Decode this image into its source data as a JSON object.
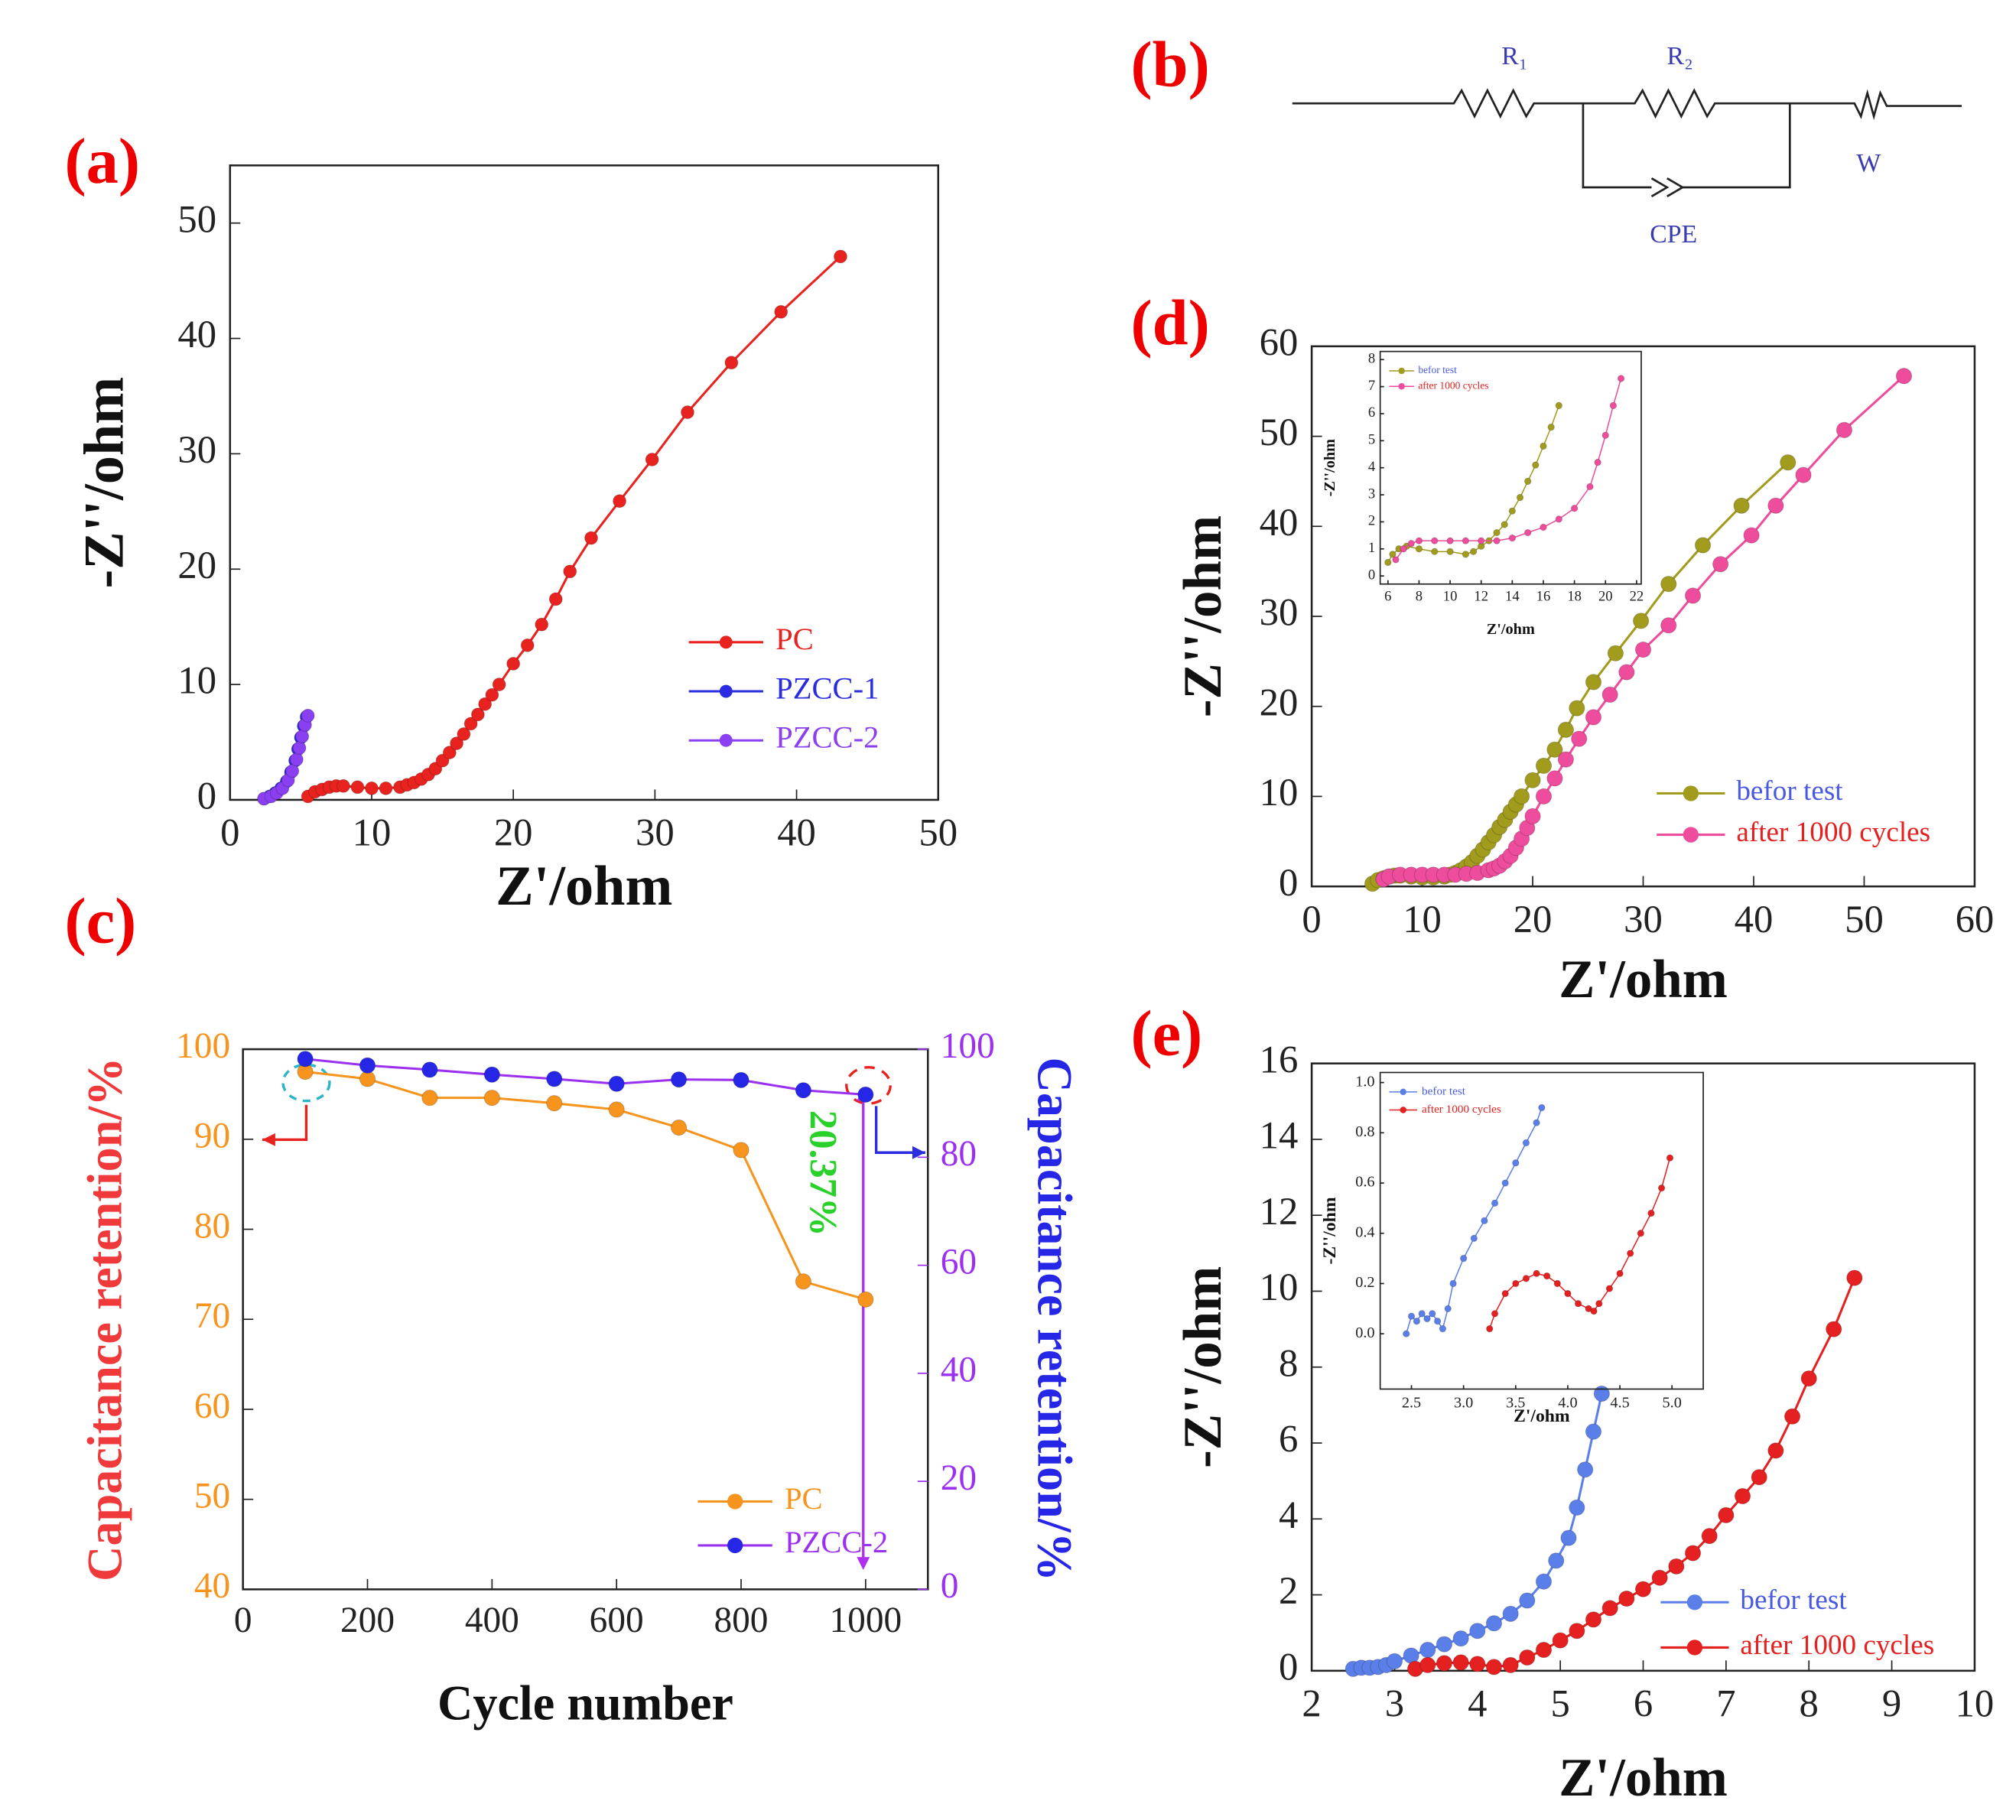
{
  "circuit": {
    "panel": "(b)",
    "r1": "R₁",
    "r2": "R₂",
    "w": "W",
    "cpe": "CPE"
  },
  "chart_data": [
    {
      "type": "line",
      "panel": "(a)",
      "xlabel": "Z'/ohm",
      "ylabel": "-Z''/ohm",
      "xlim": [
        0,
        50
      ],
      "ylim": [
        0,
        55
      ],
      "xticks": [
        0,
        10,
        20,
        30,
        40,
        50
      ],
      "yticks": [
        0,
        10,
        20,
        30,
        40,
        50
      ],
      "legend": "lower right",
      "series": [
        {
          "name": "PC",
          "color": "#e8231f",
          "x": [
            5.5,
            6,
            6.5,
            7,
            7.5,
            8,
            9,
            10,
            11,
            12,
            12.5,
            13,
            13.5,
            14,
            14.5,
            15,
            15.5,
            16,
            16.5,
            17,
            17.5,
            18,
            18.5,
            19,
            20,
            21,
            22,
            23,
            24,
            25.5,
            27.5,
            29.8,
            32.3,
            35.4,
            38.9,
            43.1
          ],
          "values": [
            0.3,
            0.7,
            0.9,
            1.1,
            1.2,
            1.2,
            1.1,
            1.0,
            1.0,
            1.1,
            1.3,
            1.5,
            1.8,
            2.2,
            2.7,
            3.4,
            4.1,
            4.9,
            5.7,
            6.6,
            7.4,
            8.3,
            9.1,
            10.0,
            11.8,
            13.4,
            15.2,
            17.4,
            19.8,
            22.7,
            25.9,
            29.5,
            33.6,
            37.9,
            42.3,
            47.1
          ]
        },
        {
          "name": "PZCC-1",
          "color": "#2b2be0",
          "x": [
            2.4,
            2.8,
            3.2,
            3.6,
            4.0,
            4.3,
            4.6,
            4.8,
            5.0,
            5.2,
            5.4
          ],
          "values": [
            0.1,
            0.3,
            0.6,
            1.0,
            1.6,
            2.4,
            3.4,
            4.4,
            5.4,
            6.4,
            7.2
          ]
        },
        {
          "name": "PZCC-2",
          "color": "#8a3ff0",
          "x": [
            2.4,
            2.9,
            3.3,
            3.7,
            4.1,
            4.4,
            4.7,
            4.9,
            5.1,
            5.3,
            5.5
          ],
          "values": [
            0.1,
            0.3,
            0.6,
            1.0,
            1.7,
            2.5,
            3.5,
            4.5,
            5.5,
            6.5,
            7.3
          ]
        }
      ]
    },
    {
      "type": "line",
      "panel": "(c)",
      "xlabel": "Cycle number",
      "ylabel": "Capacitance retention/%",
      "y2label": "Capacitance retention/%",
      "ylabel_color": "#f0393a",
      "y2label_color": "#2626e6",
      "ytick_color": "#f7941d",
      "y2tick_color": "#9b30f0",
      "xlim": [
        0,
        1100
      ],
      "ylim": [
        40,
        100
      ],
      "y2lim": [
        0,
        100
      ],
      "xticks": [
        0,
        200,
        400,
        600,
        800,
        1000
      ],
      "yticks": [
        40,
        50,
        60,
        70,
        80,
        90,
        100
      ],
      "y2ticks": [
        0,
        20,
        40,
        60,
        80,
        100
      ],
      "legend": "lower right",
      "annotation": "20.37%",
      "annotation_color": "#2ad12a",
      "x": [
        100,
        200,
        300,
        400,
        500,
        600,
        700,
        800,
        900,
        1000
      ],
      "series": [
        {
          "name": "PC",
          "color": "#f7941d",
          "values": [
            97.5,
            96.7,
            94.6,
            94.6,
            94.0,
            93.3,
            91.3,
            88.8,
            74.2,
            72.2
          ]
        },
        {
          "name": "PZCC-2",
          "color": "#9b30f0",
          "marker_color": "#2626e6",
          "axis": "y2",
          "values": [
            98.2,
            97.0,
            96.2,
            95.3,
            94.5,
            93.6,
            94.4,
            94.3,
            92.4,
            91.6
          ]
        }
      ]
    },
    {
      "type": "line",
      "panel": "(d)",
      "xlabel": "Z'/ohm",
      "ylabel": "-Z''/ohm",
      "xlim": [
        0,
        60
      ],
      "ylim": [
        0,
        60
      ],
      "xticks": [
        0,
        10,
        20,
        30,
        40,
        50,
        60
      ],
      "yticks": [
        0,
        10,
        20,
        30,
        40,
        50,
        60
      ],
      "legend": "lower right",
      "series": [
        {
          "name": "befor test",
          "color": "#a19b1e",
          "label_color": "#4a5ae0",
          "x": [
            5.5,
            6,
            6.5,
            7,
            7.5,
            8,
            9,
            10,
            11,
            12,
            12.5,
            13,
            13.5,
            14,
            14.5,
            15,
            15.5,
            16,
            16.5,
            17,
            17.5,
            18,
            18.5,
            19,
            20,
            21,
            22,
            23,
            24,
            25.5,
            27.5,
            29.8,
            32.3,
            35.4,
            38.9,
            43.1
          ],
          "values": [
            0.3,
            0.7,
            0.9,
            1.1,
            1.2,
            1.2,
            1.1,
            1.0,
            1.0,
            1.1,
            1.3,
            1.5,
            1.8,
            2.2,
            2.7,
            3.4,
            4.1,
            4.9,
            5.7,
            6.6,
            7.4,
            8.3,
            9.1,
            10.0,
            11.8,
            13.4,
            15.2,
            17.4,
            19.8,
            22.7,
            25.9,
            29.5,
            33.6,
            37.9,
            42.3,
            47.1
          ]
        },
        {
          "name": "after 1000 cycles",
          "color": "#ee4c9c",
          "label_color": "#e42020",
          "x": [
            6.5,
            7,
            8,
            9,
            10,
            11,
            12,
            13,
            14,
            15,
            16,
            16.5,
            17,
            17.5,
            18,
            18.5,
            19,
            19.5,
            20,
            21,
            22,
            23,
            24.2,
            25.5,
            27,
            28.5,
            30,
            32.3,
            34.5,
            37,
            39.8,
            42,
            44.5,
            48.2,
            53.6
          ],
          "values": [
            0.8,
            1.1,
            1.3,
            1.3,
            1.3,
            1.3,
            1.3,
            1.3,
            1.4,
            1.5,
            1.8,
            2.0,
            2.3,
            2.8,
            3.4,
            4.3,
            5.3,
            6.5,
            7.8,
            10.0,
            12.0,
            14.1,
            16.4,
            18.8,
            21.3,
            23.8,
            26.3,
            29.0,
            32.3,
            35.8,
            39.0,
            42.3,
            45.7,
            50.7,
            56.7
          ]
        }
      ],
      "inset": {
        "xlabel": "Z'/ohm",
        "ylabel": "-Z''/ohm",
        "xlim": [
          5.5,
          22.3
        ],
        "ylim": [
          -0.3,
          8.3
        ],
        "xticks": [
          6,
          8,
          10,
          12,
          14,
          16,
          18,
          20,
          22
        ],
        "yticks": [
          0,
          1,
          2,
          3,
          4,
          5,
          6,
          7,
          8
        ],
        "legend": "upper left",
        "series": [
          {
            "name": "befor test",
            "color": "#a19b1e",
            "label_color": "#4a5ae0",
            "x": [
              6.0,
              6.3,
              6.7,
              7.2,
              8,
              9,
              10,
              11,
              11.5,
              12,
              12.5,
              13,
              13.5,
              14,
              14.5,
              15,
              15.5,
              16,
              16.5,
              17
            ],
            "values": [
              0.5,
              0.8,
              1.0,
              1.1,
              1.0,
              0.9,
              0.9,
              0.8,
              0.9,
              1.1,
              1.3,
              1.6,
              1.9,
              2.4,
              2.9,
              3.5,
              4.1,
              4.8,
              5.5,
              6.3
            ]
          },
          {
            "name": "after 1000 cycles",
            "color": "#ee4c9c",
            "label_color": "#e42020",
            "x": [
              6.5,
              7,
              7.5,
              8,
              9,
              10,
              11,
              12,
              13,
              14,
              15,
              16,
              17,
              18,
              19,
              19.5,
              20,
              20.5,
              21
            ],
            "values": [
              0.6,
              1.0,
              1.2,
              1.3,
              1.3,
              1.3,
              1.3,
              1.3,
              1.3,
              1.4,
              1.6,
              1.8,
              2.1,
              2.5,
              3.3,
              4.2,
              5.2,
              6.3,
              7.3
            ]
          }
        ]
      }
    },
    {
      "type": "line",
      "panel": "(e)",
      "xlabel": "Z'/ohm",
      "ylabel": "-Z''/ohm",
      "xlim": [
        2,
        10
      ],
      "ylim": [
        0,
        16
      ],
      "xticks": [
        2,
        3,
        4,
        5,
        6,
        7,
        8,
        9,
        10
      ],
      "yticks": [
        0,
        2,
        4,
        6,
        8,
        10,
        12,
        14,
        16
      ],
      "legend": "lower right",
      "series": [
        {
          "name": "befor test",
          "color": "#5b7fe8",
          "label_color": "#4a5ae0",
          "x": [
            2.5,
            2.6,
            2.7,
            2.8,
            2.9,
            3.0,
            3.2,
            3.4,
            3.6,
            3.8,
            4.0,
            4.2,
            4.4,
            4.6,
            4.8,
            4.95,
            5.1,
            5.2,
            5.3,
            5.4,
            5.5
          ],
          "values": [
            0.05,
            0.08,
            0.08,
            0.1,
            0.15,
            0.25,
            0.4,
            0.55,
            0.7,
            0.85,
            1.05,
            1.25,
            1.5,
            1.85,
            2.35,
            2.9,
            3.5,
            4.3,
            5.3,
            6.3,
            7.3
          ]
        },
        {
          "name": "after 1000 cycles",
          "color": "#e42020",
          "label_color": "#e42020",
          "x": [
            3.25,
            3.4,
            3.6,
            3.8,
            4.0,
            4.2,
            4.4,
            4.6,
            4.8,
            5.0,
            5.2,
            5.4,
            5.6,
            5.8,
            6.0,
            6.2,
            6.4,
            6.6,
            6.8,
            7.0,
            7.2,
            7.4,
            7.6,
            7.8,
            8.0,
            8.3,
            8.55
          ],
          "values": [
            0.05,
            0.15,
            0.2,
            0.22,
            0.18,
            0.1,
            0.15,
            0.35,
            0.55,
            0.8,
            1.05,
            1.35,
            1.65,
            1.9,
            2.15,
            2.45,
            2.75,
            3.1,
            3.55,
            4.1,
            4.6,
            5.1,
            5.8,
            6.7,
            7.7,
            9.0,
            10.35
          ]
        }
      ],
      "inset": {
        "xlabel": "Z'/ohm",
        "ylabel": "-Z''/ohm",
        "xlim": [
          2.2,
          5.3
        ],
        "ylim": [
          -0.22,
          1.04
        ],
        "xticks": [
          2.5,
          {
            "value": 3,
            "label": "3.0"
          },
          3.5,
          {
            "value": 4,
            "label": "4.0"
          },
          4.5,
          {
            "value": 5,
            "label": "5.0"
          }
        ],
        "yticks": [
          {
            "value": 0,
            "label": "0.0"
          },
          0.2,
          0.4,
          0.6,
          0.8,
          {
            "value": 1,
            "label": "1.0"
          }
        ],
        "legend": "upper left",
        "series": [
          {
            "name": "befor test",
            "color": "#5b7fe8",
            "label_color": "#4a5ae0",
            "x": [
              2.45,
              2.5,
              2.55,
              2.6,
              2.65,
              2.7,
              2.75,
              2.8,
              2.85,
              2.9,
              3.0,
              3.1,
              3.2,
              3.3,
              3.4,
              3.5,
              3.6,
              3.7,
              3.75
            ],
            "values": [
              0.0,
              0.07,
              0.05,
              0.08,
              0.06,
              0.08,
              0.05,
              0.02,
              0.1,
              0.2,
              0.3,
              0.38,
              0.45,
              0.52,
              0.6,
              0.68,
              0.76,
              0.84,
              0.9
            ]
          },
          {
            "name": "after 1000 cycles",
            "color": "#e42020",
            "label_color": "#e42020",
            "x": [
              3.25,
              3.3,
              3.4,
              3.5,
              3.6,
              3.7,
              3.8,
              3.9,
              4.0,
              4.1,
              4.2,
              4.25,
              4.3,
              4.4,
              4.5,
              4.6,
              4.7,
              4.8,
              4.9,
              4.98
            ],
            "values": [
              0.02,
              0.08,
              0.16,
              0.2,
              0.22,
              0.24,
              0.23,
              0.2,
              0.16,
              0.12,
              0.1,
              0.09,
              0.12,
              0.18,
              0.24,
              0.32,
              0.4,
              0.48,
              0.58,
              0.7
            ]
          }
        ]
      }
    }
  ]
}
